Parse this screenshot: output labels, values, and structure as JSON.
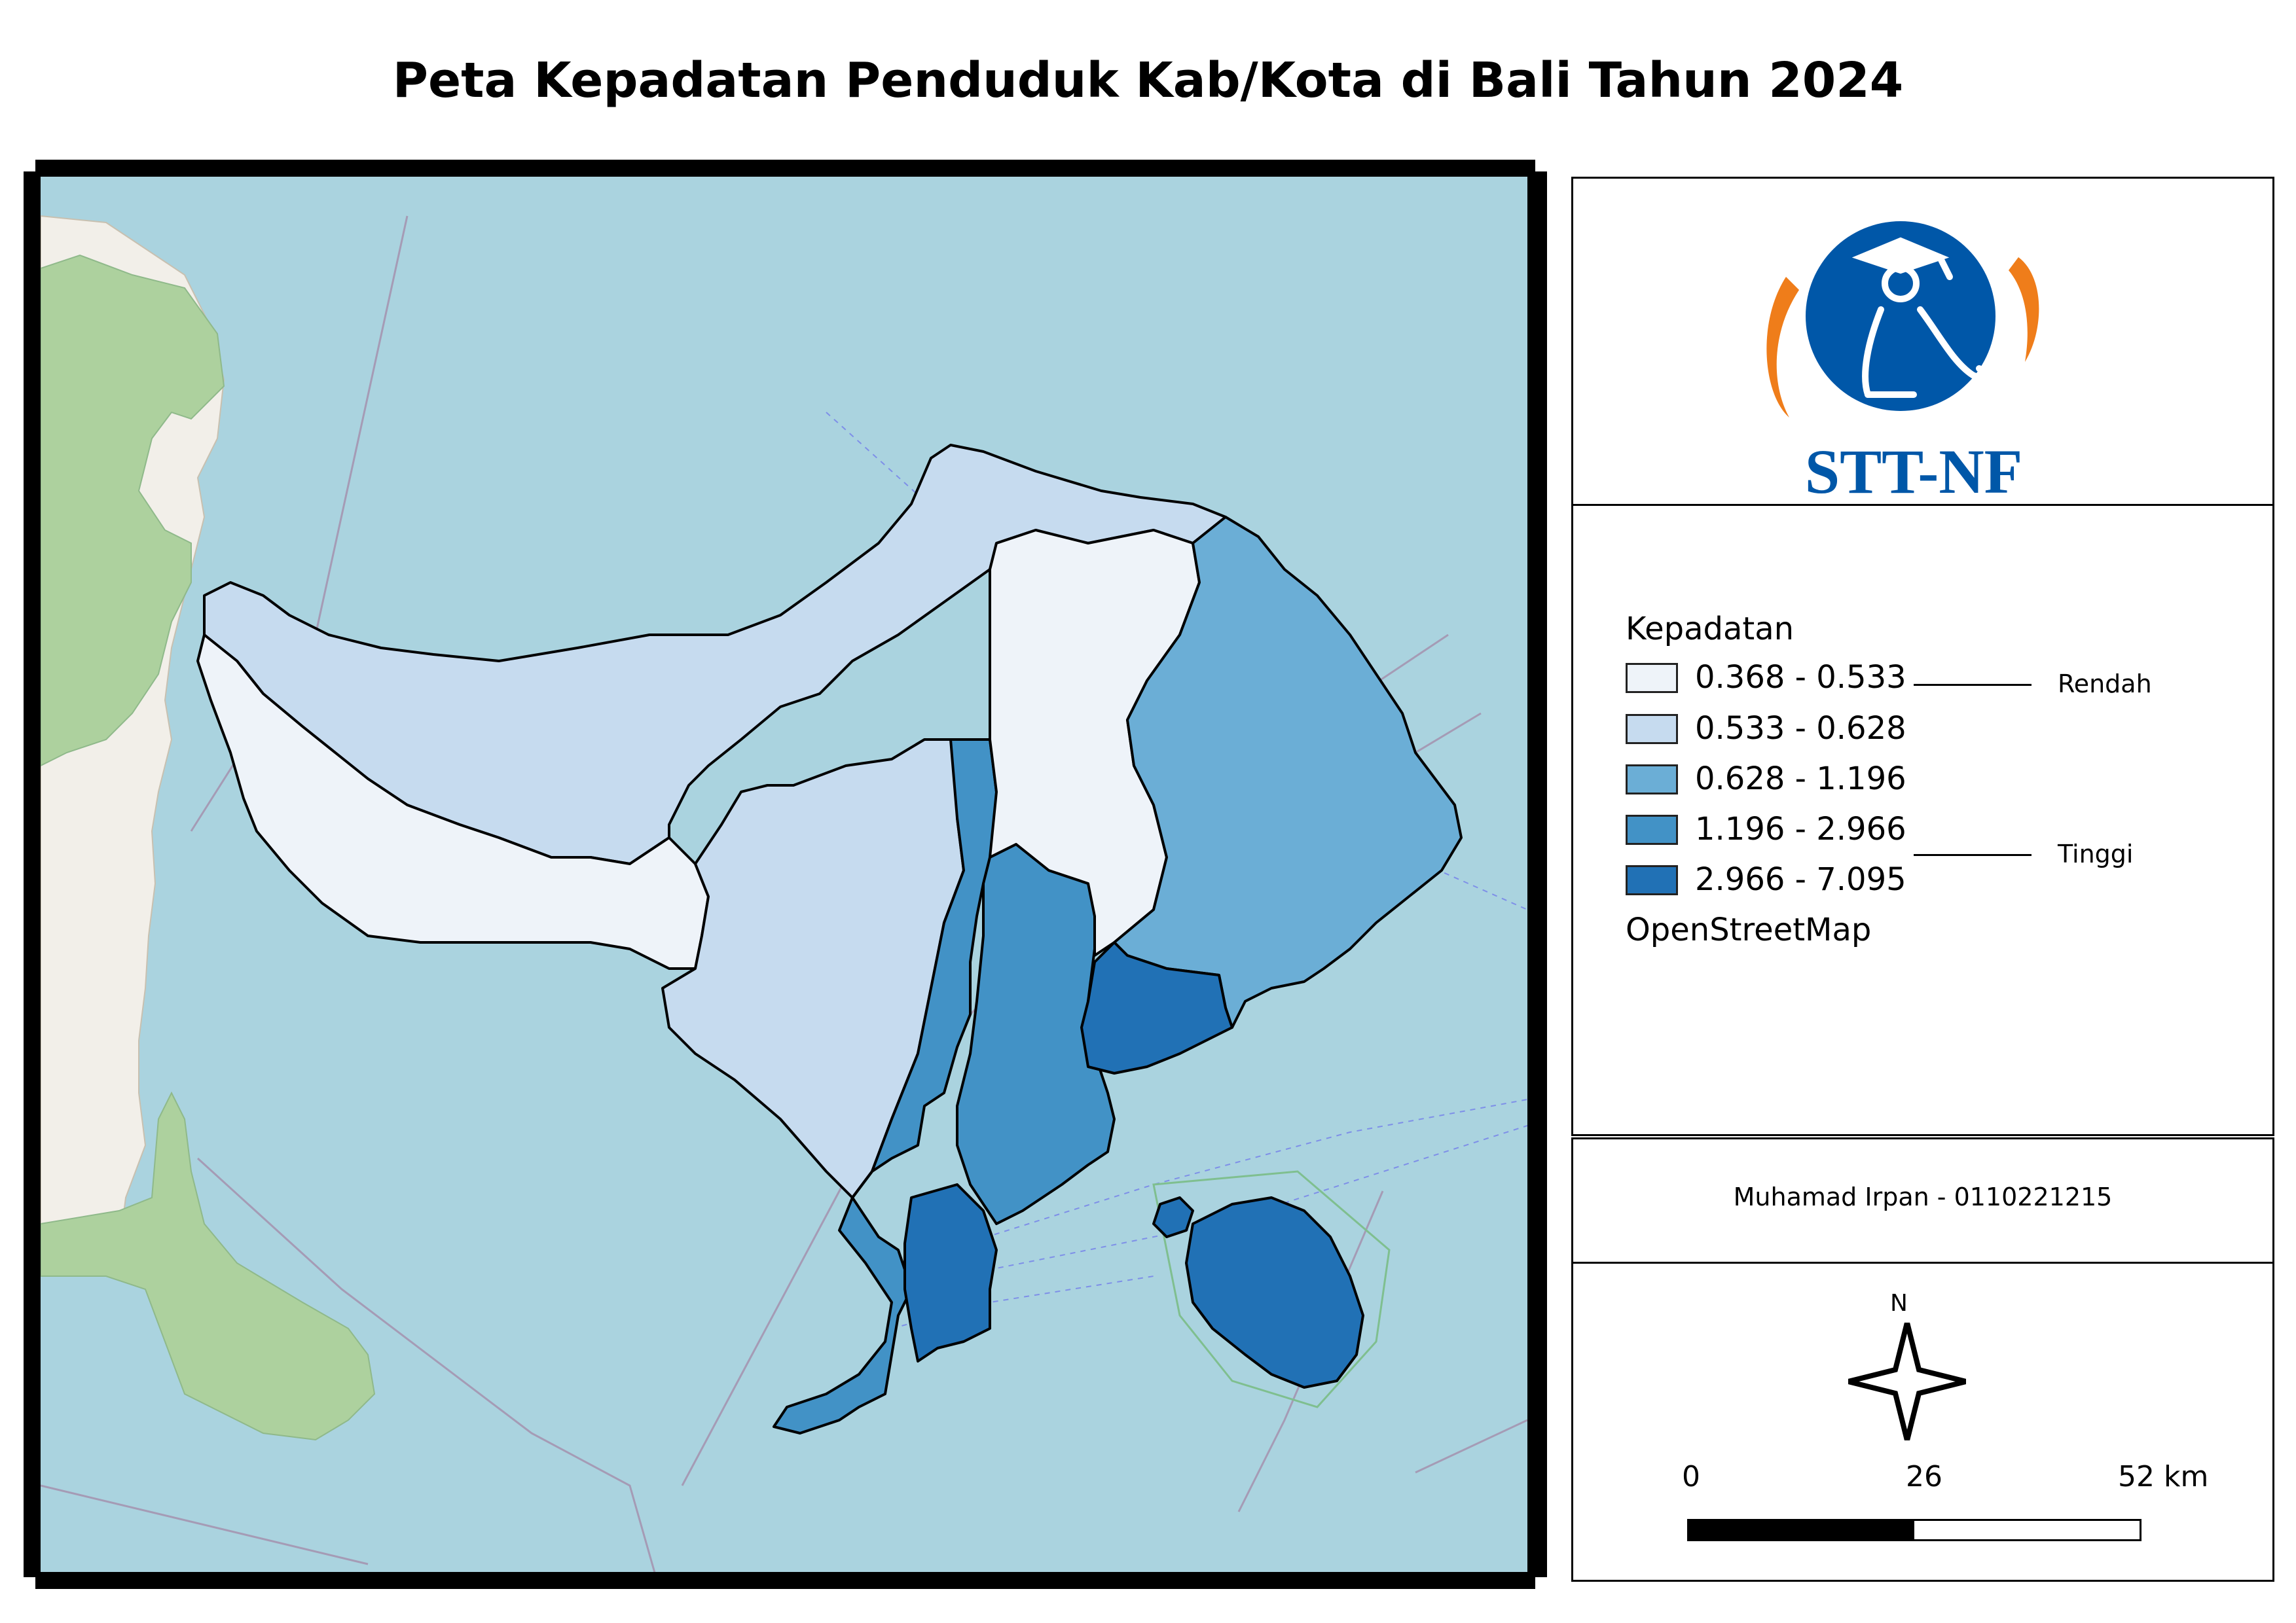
{
  "title": "Peta Kepadatan Penduduk Kab/Kota di Bali Tahun 2024",
  "logo": {
    "text": "STT-NF",
    "colors": {
      "blue": "#0057a8",
      "orange": "#ef7d1a"
    }
  },
  "legend": {
    "title": "Kepadatan",
    "classes": [
      {
        "label": "0.368 - 0.533",
        "color": "#eef3f9"
      },
      {
        "label": "0.533 - 0.628",
        "color": "#c6dbef"
      },
      {
        "label": "0.628 - 1.196",
        "color": "#6baed6"
      },
      {
        "label": "1.196 - 2.966",
        "color": "#4292c6"
      },
      {
        "label": "2.966 - 7.095",
        "color": "#2171b5"
      }
    ],
    "low_label": "Rendah",
    "high_label": "Tinggi",
    "basemap_label": "OpenStreetMap"
  },
  "author": "Muhamad Irpan - 0110221215",
  "north_label": "N",
  "scale": {
    "ticks": [
      "0",
      "26",
      "52 km"
    ]
  },
  "map_colors": {
    "sea": "#aad3df",
    "land": "#f2efe9",
    "forest": "#add19e",
    "border": "#000000"
  }
}
